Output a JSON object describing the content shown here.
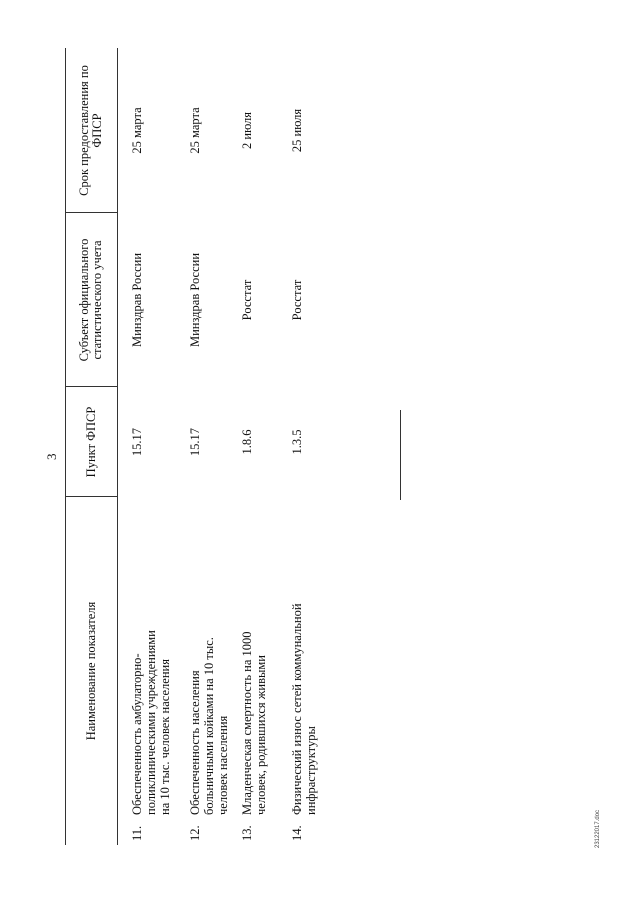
{
  "page_number": "3",
  "footer": "23122017.doc",
  "table": {
    "headers": [
      "Наименование показателя",
      "Пункт ФПСР",
      "Субъект официального статистического учета",
      "Срок предоставления по ФПСР"
    ],
    "rows": [
      {
        "num": "11.",
        "name": "Обеспеченность амбулаторно-поликлиническими учреждениями на 10 тыс. человек населения",
        "point": "15.17",
        "subject": "Минздрав России",
        "deadline": "25 марта"
      },
      {
        "num": "12.",
        "name": "Обеспеченность населения больничными койками на 10 тыс. человек населения",
        "point": "15.17",
        "subject": "Минздрав России",
        "deadline": "25 марта"
      },
      {
        "num": "13.",
        "name": "Младенческая смертность на 1000 человек, родившихся живыми",
        "point": "1.8.6",
        "subject": "Росстат",
        "deadline": "2 июля"
      },
      {
        "num": "14.",
        "name": "Физический износ сетей коммунальной инфраструктуры",
        "point": "1.3.5",
        "subject": "Росстат",
        "deadline": "25 июля"
      }
    ]
  }
}
